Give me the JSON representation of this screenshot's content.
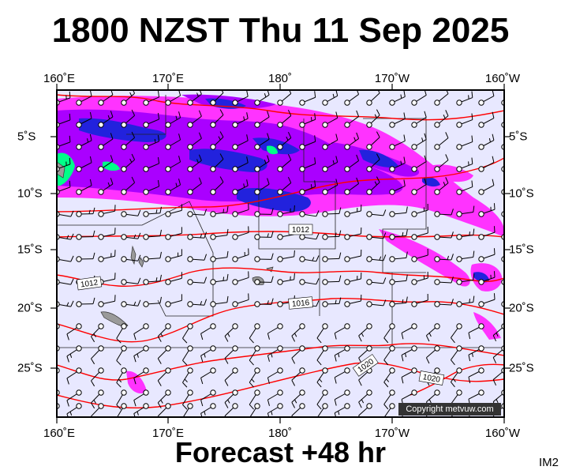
{
  "title": "1800 NZST Thu 11 Sep 2025",
  "footer": "Forecast +48 hr",
  "code": "IM2",
  "copyright": "Copyright metvuw.com",
  "lon_labels": [
    "160˚E",
    "170˚E",
    "180˚",
    "170˚W",
    "160˚W"
  ],
  "lat_labels": [
    "5˚S",
    "10˚S",
    "15˚S",
    "20˚S",
    "25˚S"
  ],
  "isobar_labels": [
    "1012",
    "1012",
    "1016",
    "1020",
    "1020"
  ],
  "colors": {
    "background": "#e8e8ff",
    "isobar": "#ff0000",
    "rain_light": "#ff33ff",
    "rain_medium": "#aa00ff",
    "rain_heavy": "#2222dd",
    "rain_extreme": "#00ff88",
    "land": "#9a9a9a"
  }
}
